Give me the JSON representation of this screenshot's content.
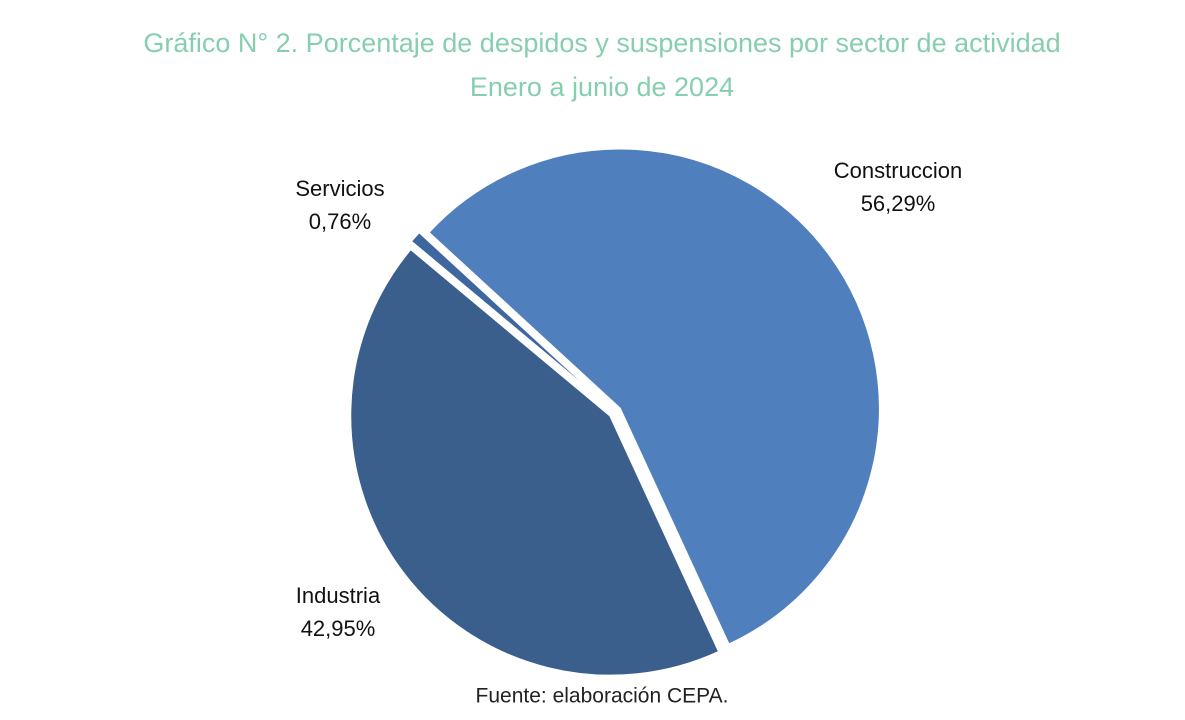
{
  "chart_data": {
    "type": "pie",
    "title": "Gráfico N° 2. Porcentaje de despidos y suspensiones por sector de actividad",
    "subtitle": "Enero a junio de 2024",
    "categories": [
      "Construccion",
      "Industria",
      "Servicios"
    ],
    "values": [
      56.29,
      42.95,
      0.76
    ],
    "value_labels": [
      "56,29%",
      "42,95%",
      "0,76%"
    ],
    "colors": [
      "#4f7fbd",
      "#3b5f8c",
      "#3e67a0"
    ],
    "source": "Fuente: elaboración CEPA."
  }
}
